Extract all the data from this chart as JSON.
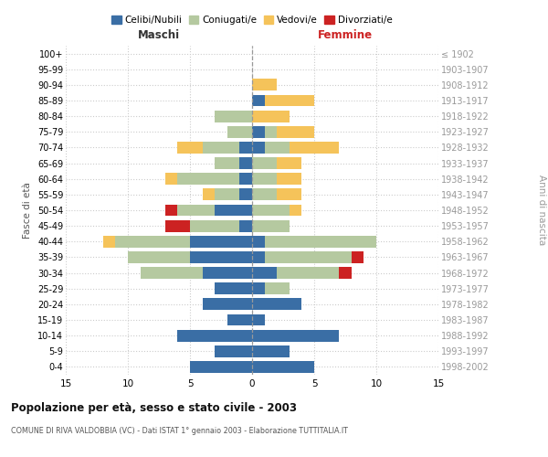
{
  "age_groups": [
    "0-4",
    "5-9",
    "10-14",
    "15-19",
    "20-24",
    "25-29",
    "30-34",
    "35-39",
    "40-44",
    "45-49",
    "50-54",
    "55-59",
    "60-64",
    "65-69",
    "70-74",
    "75-79",
    "80-84",
    "85-89",
    "90-94",
    "95-99",
    "100+"
  ],
  "birth_years": [
    "1998-2002",
    "1993-1997",
    "1988-1992",
    "1983-1987",
    "1978-1982",
    "1973-1977",
    "1968-1972",
    "1963-1967",
    "1958-1962",
    "1953-1957",
    "1948-1952",
    "1943-1947",
    "1938-1942",
    "1933-1937",
    "1928-1932",
    "1923-1927",
    "1918-1922",
    "1913-1917",
    "1908-1912",
    "1903-1907",
    "≤ 1902"
  ],
  "male": {
    "celibi": [
      5,
      3,
      6,
      2,
      4,
      3,
      4,
      5,
      5,
      1,
      3,
      1,
      1,
      1,
      1,
      0,
      0,
      0,
      0,
      0,
      0
    ],
    "coniugati": [
      0,
      0,
      0,
      0,
      0,
      0,
      5,
      5,
      6,
      4,
      3,
      2,
      5,
      2,
      3,
      2,
      3,
      0,
      0,
      0,
      0
    ],
    "vedovi": [
      0,
      0,
      0,
      0,
      0,
      0,
      0,
      0,
      1,
      0,
      0,
      1,
      1,
      0,
      2,
      0,
      0,
      0,
      0,
      0,
      0
    ],
    "divorziati": [
      0,
      0,
      0,
      0,
      0,
      0,
      0,
      0,
      0,
      2,
      1,
      0,
      0,
      0,
      0,
      0,
      0,
      0,
      0,
      0,
      0
    ]
  },
  "female": {
    "nubili": [
      5,
      3,
      7,
      1,
      4,
      1,
      2,
      1,
      1,
      0,
      0,
      0,
      0,
      0,
      1,
      1,
      0,
      1,
      0,
      0,
      0
    ],
    "coniugate": [
      0,
      0,
      0,
      0,
      0,
      2,
      5,
      7,
      9,
      3,
      3,
      2,
      2,
      2,
      2,
      1,
      0,
      0,
      0,
      0,
      0
    ],
    "vedove": [
      0,
      0,
      0,
      0,
      0,
      0,
      0,
      0,
      0,
      0,
      1,
      2,
      2,
      2,
      4,
      3,
      3,
      4,
      2,
      0,
      0
    ],
    "divorziate": [
      0,
      0,
      0,
      0,
      0,
      0,
      1,
      1,
      0,
      0,
      0,
      0,
      0,
      0,
      0,
      0,
      0,
      0,
      0,
      0,
      0
    ]
  },
  "colors": {
    "celibi": "#3a6ea5",
    "coniugati": "#b5c9a0",
    "vedovi": "#f5c35a",
    "divorziati": "#cc2222"
  },
  "xlim": 15,
  "title": "Popolazione per età, sesso e stato civile - 2003",
  "subtitle": "COMUNE DI RIVA VALDOBBIA (VC) - Dati ISTAT 1° gennaio 2003 - Elaborazione TUTTITALIA.IT",
  "ylabel_left": "Fasce di età",
  "ylabel_right": "Anni di nascita",
  "xlabel_left": "Maschi",
  "xlabel_right": "Femmine",
  "bg_color": "#ffffff",
  "grid_color": "#cccccc"
}
